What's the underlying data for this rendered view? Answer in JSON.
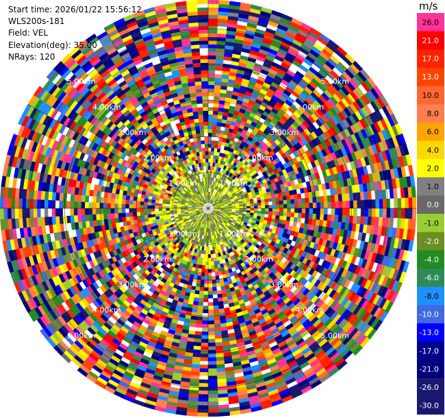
{
  "header": {
    "start_time": "Start time: 2026/01/22 15:56:12",
    "instrument": "WLS200s-181",
    "field": "Field: VEL",
    "elevation": "Elevation(deg): 35.00",
    "nrays": "NRays: 120"
  },
  "colorbar": {
    "unit": "m/s",
    "bins": [
      {
        "label": "26.0",
        "color": "#ff3399"
      },
      {
        "label": "21.0",
        "color": "#ff0000"
      },
      {
        "label": "17.0",
        "color": "#ff2200"
      },
      {
        "label": "13.0",
        "color": "#ff4400"
      },
      {
        "label": "10.0",
        "color": "#ff6633"
      },
      {
        "label": "8.0",
        "color": "#ff7f50"
      },
      {
        "label": "6.0",
        "color": "#ffa500"
      },
      {
        "label": "4.0",
        "color": "#ffd700"
      },
      {
        "label": "2.0",
        "color": "#ffff00"
      },
      {
        "label": "1.0",
        "color": "#808080"
      },
      {
        "label": "0.0",
        "color": "#696969"
      },
      {
        "label": "-1.0",
        "color": "#9acd32"
      },
      {
        "label": "-2.0",
        "color": "#6b8e23"
      },
      {
        "label": "-4.0",
        "color": "#228b22"
      },
      {
        "label": "-6.0",
        "color": "#2e8b57"
      },
      {
        "label": "-8.0",
        "color": "#1e90ff"
      },
      {
        "label": "-10.0",
        "color": "#4169e1"
      },
      {
        "label": "-13.0",
        "color": "#0000ff"
      },
      {
        "label": "-17.0",
        "color": "#00008b"
      },
      {
        "label": "-21.0",
        "color": "#000080"
      },
      {
        "label": "-26.0",
        "color": "#191970"
      },
      {
        "label": "-30.0",
        "color": "#191970"
      }
    ]
  },
  "chart_data": {
    "type": "heatmap",
    "projection": "polar",
    "field": "VEL",
    "nrays": 120,
    "range_ring_labels": [
      "1.00km",
      "2.00km",
      "3.00km",
      "4.00km",
      "5.00km"
    ],
    "range_rings_km": [
      1,
      2,
      3,
      4,
      5
    ],
    "max_range_km": 5.8,
    "spokes_deg": [
      0,
      30,
      60,
      90,
      120,
      150,
      180,
      210,
      240,
      270,
      300,
      330
    ],
    "ring_label_bearings_deg": [
      315,
      45,
      135,
      225
    ],
    "near_field_pattern": {
      "description": "yellow and olive-green returns inside ~1 km",
      "colors": [
        "#ffff00",
        "#9acd32",
        "#808080",
        "#6b8e23"
      ]
    },
    "far_field_pattern": {
      "description": "noisy multi-colored returns beyond ~1 km"
    }
  }
}
